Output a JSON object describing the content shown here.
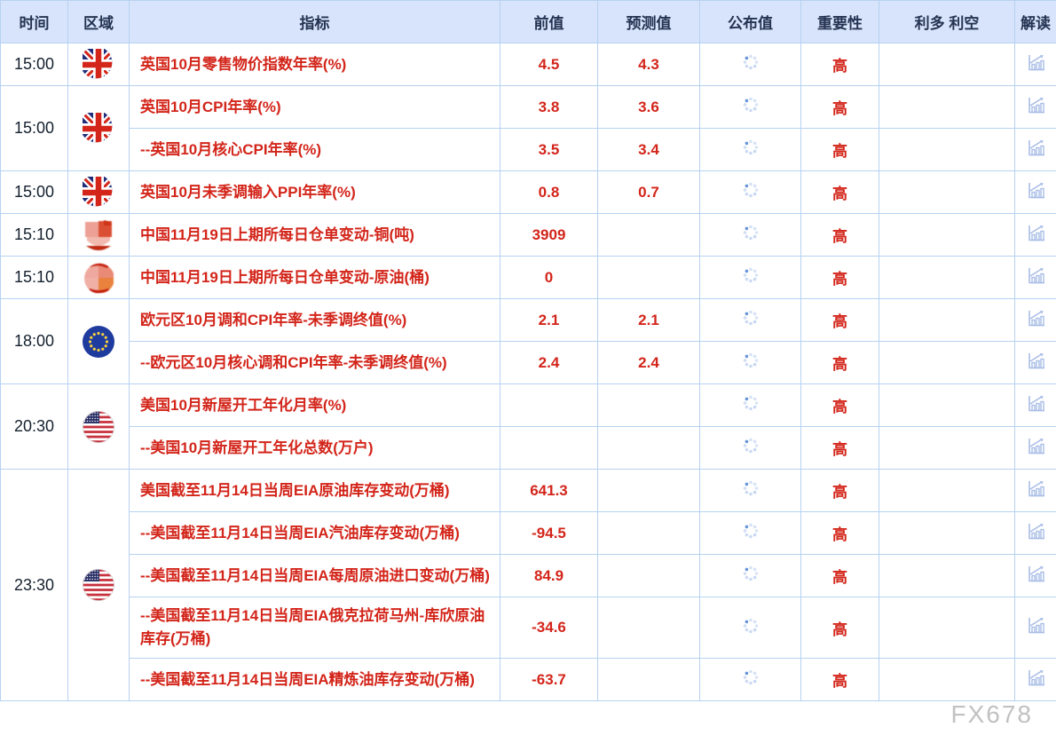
{
  "header": {
    "columns": [
      "时间",
      "区域",
      "指标",
      "前值",
      "预测值",
      "公布值",
      "重要性",
      "利多 利空",
      "解读"
    ]
  },
  "calendar": {
    "groups": [
      {
        "time": "15:00",
        "flag": "uk",
        "flag_name": "uk-flag",
        "rows": [
          {
            "indicator": "英国10月零售物价指数年率(%)",
            "previous": "4.5",
            "forecast": "4.3",
            "published": "loading",
            "importance": "高",
            "bull_bear": "",
            "interpret": "chart"
          }
        ]
      },
      {
        "time": "15:00",
        "flag": "uk",
        "flag_name": "uk-flag",
        "rows": [
          {
            "indicator": "英国10月CPI年率(%)",
            "previous": "3.8",
            "forecast": "3.6",
            "published": "loading",
            "importance": "高",
            "bull_bear": "",
            "interpret": "chart"
          },
          {
            "indicator": "--英国10月核心CPI年率(%)",
            "previous": "3.5",
            "forecast": "3.4",
            "published": "loading",
            "importance": "高",
            "bull_bear": "",
            "interpret": "chart"
          }
        ]
      },
      {
        "time": "15:00",
        "flag": "uk",
        "flag_name": "uk-flag",
        "rows": [
          {
            "indicator": "英国10月未季调输入PPI年率(%)",
            "previous": "0.8",
            "forecast": "0.7",
            "published": "loading",
            "importance": "高",
            "bull_bear": "",
            "interpret": "chart"
          }
        ]
      },
      {
        "time": "15:10",
        "flag": "cn-blur-a",
        "flag_name": "china-flag-pixelated",
        "rows": [
          {
            "indicator": "中国11月19日上期所每日仓单变动-铜(吨)",
            "previous": "3909",
            "forecast": "",
            "published": "loading",
            "importance": "高",
            "bull_bear": "",
            "interpret": "chart"
          }
        ]
      },
      {
        "time": "15:10",
        "flag": "cn-blur-b",
        "flag_name": "china-flag-pixelated",
        "rows": [
          {
            "indicator": "中国11月19日上期所每日仓单变动-原油(桶)",
            "previous": "0",
            "forecast": "",
            "published": "loading",
            "importance": "高",
            "bull_bear": "",
            "interpret": "chart"
          }
        ]
      },
      {
        "time": "18:00",
        "flag": "eu",
        "flag_name": "eu-flag",
        "rows": [
          {
            "indicator": "欧元区10月调和CPI年率-未季调终值(%)",
            "previous": "2.1",
            "forecast": "2.1",
            "published": "loading",
            "importance": "高",
            "bull_bear": "",
            "interpret": "chart"
          },
          {
            "indicator": "--欧元区10月核心调和CPI年率-未季调终值(%)",
            "previous": "2.4",
            "forecast": "2.4",
            "published": "loading",
            "importance": "高",
            "bull_bear": "",
            "interpret": "chart"
          }
        ]
      },
      {
        "time": "20:30",
        "flag": "us",
        "flag_name": "us-flag",
        "rows": [
          {
            "indicator": "美国10月新屋开工年化月率(%)",
            "previous": "",
            "forecast": "",
            "published": "loading",
            "importance": "高",
            "bull_bear": "",
            "interpret": "chart"
          },
          {
            "indicator": "--美国10月新屋开工年化总数(万户)",
            "previous": "",
            "forecast": "",
            "published": "loading",
            "importance": "高",
            "bull_bear": "",
            "interpret": "chart"
          }
        ]
      },
      {
        "time": "23:30",
        "flag": "us",
        "flag_name": "us-flag",
        "rows": [
          {
            "indicator": "美国截至11月14日当周EIA原油库存变动(万桶)",
            "previous": "641.3",
            "forecast": "",
            "published": "loading",
            "importance": "高",
            "bull_bear": "",
            "interpret": "chart"
          },
          {
            "indicator": "--美国截至11月14日当周EIA汽油库存变动(万桶)",
            "previous": "-94.5",
            "forecast": "",
            "published": "loading",
            "importance": "高",
            "bull_bear": "",
            "interpret": "chart"
          },
          {
            "indicator": "--美国截至11月14日当周EIA每周原油进口变动(万桶)",
            "previous": "84.9",
            "forecast": "",
            "published": "loading",
            "importance": "高",
            "bull_bear": "",
            "interpret": "chart"
          },
          {
            "indicator": "--美国截至11月14日当周EIA俄克拉荷马州-库欣原油库存(万桶)",
            "previous": "-34.6",
            "forecast": "",
            "published": "loading",
            "importance": "高",
            "bull_bear": "",
            "interpret": "chart"
          },
          {
            "indicator": "--美国截至11月14日当周EIA精炼油库存变动(万桶)",
            "previous": "-63.7",
            "forecast": "",
            "published": "loading",
            "importance": "高",
            "bull_bear": "",
            "interpret": "chart"
          }
        ]
      }
    ]
  },
  "watermark": "FX678",
  "colors": {
    "header_bg": "#d7e4fb",
    "border": "#b6d2f2",
    "text_red": "#d3251a",
    "header_text": "#253352",
    "icon_blue": "#a9bde6",
    "spinner_blue": "#9db9e8",
    "watermark_gray": "#b2b2b2"
  },
  "icons": {
    "published_placeholder": "loading-spinner-icon",
    "interpret_icon": "chart-up-icon"
  }
}
